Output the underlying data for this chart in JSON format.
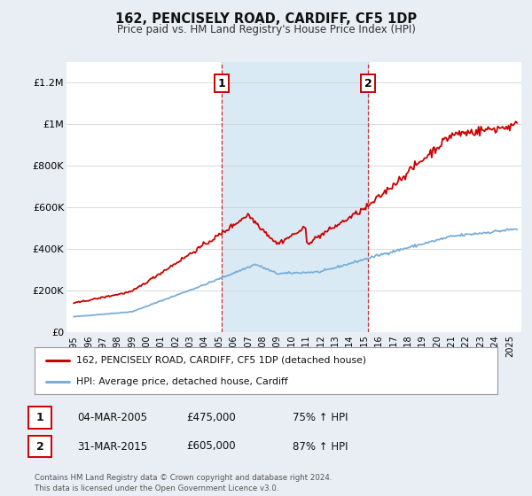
{
  "title": "162, PENCISELY ROAD, CARDIFF, CF5 1DP",
  "subtitle": "Price paid vs. HM Land Registry's House Price Index (HPI)",
  "bg_color": "#e8eef4",
  "plot_bg_color": "#ffffff",
  "red_color": "#cc0000",
  "blue_color": "#7aaed6",
  "vline_color": "#cc3333",
  "span_color": "#daeaf5",
  "grid_color": "#cccccc",
  "sale1_year": 2005.17,
  "sale2_year": 2015.25,
  "sale1_price": 475000,
  "sale2_price": 605000,
  "ylim": [
    0,
    1300000
  ],
  "yticks": [
    0,
    200000,
    400000,
    600000,
    800000,
    1000000,
    1200000
  ],
  "ytick_labels": [
    "£0",
    "£200K",
    "£400K",
    "£600K",
    "£800K",
    "£1M",
    "£1.2M"
  ],
  "legend_line1": "162, PENCISELY ROAD, CARDIFF, CF5 1DP (detached house)",
  "legend_line2": "HPI: Average price, detached house, Cardiff",
  "table_rows": [
    {
      "num": "1",
      "date": "04-MAR-2005",
      "price": "£475,000",
      "hpi": "75% ↑ HPI"
    },
    {
      "num": "2",
      "date": "31-MAR-2015",
      "price": "£605,000",
      "hpi": "87% ↑ HPI"
    }
  ],
  "footer": "Contains HM Land Registry data © Crown copyright and database right 2024.\nThis data is licensed under the Open Government Licence v3.0.",
  "xmin": 1994.5,
  "xmax": 2025.8,
  "xtick_years": [
    1995,
    1996,
    1997,
    1998,
    1999,
    2000,
    2001,
    2002,
    2003,
    2004,
    2005,
    2006,
    2007,
    2008,
    2009,
    2010,
    2011,
    2012,
    2013,
    2014,
    2015,
    2016,
    2017,
    2018,
    2019,
    2020,
    2021,
    2022,
    2023,
    2024,
    2025
  ]
}
